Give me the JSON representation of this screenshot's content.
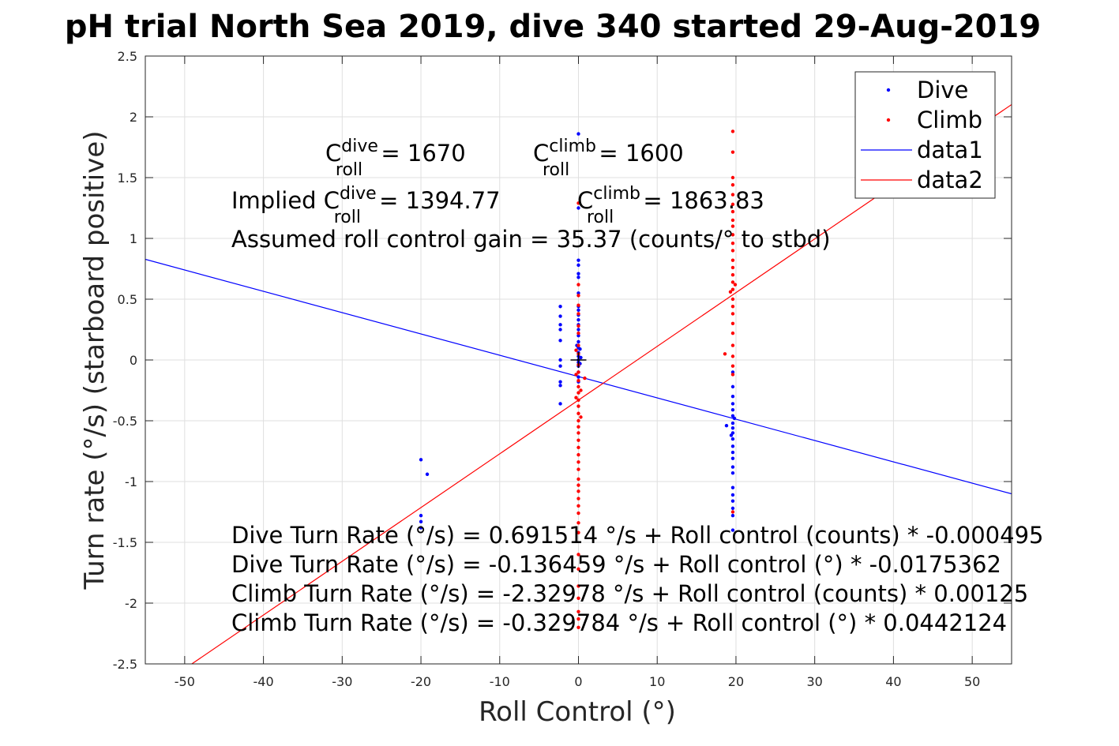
{
  "chart_data": {
    "type": "scatter",
    "title": "pH trial North Sea 2019, dive 340 started 29-Aug-2019",
    "xlabel": "Roll Control (°)",
    "ylabel": "Turn rate (°/s) (starboard positive)",
    "xlim": [
      -55,
      55
    ],
    "ylim": [
      -2.5,
      2.5
    ],
    "xticks": [
      -50,
      -40,
      -30,
      -20,
      -10,
      0,
      10,
      20,
      30,
      40,
      50
    ],
    "yticks": [
      -2.5,
      -2,
      -1.5,
      -1,
      -0.5,
      0,
      0.5,
      1,
      1.5,
      2,
      2.5
    ],
    "xtick_labels": [
      "-50",
      "-40",
      "-30",
      "-20",
      "-10",
      "0",
      "10",
      "20",
      "30",
      "40",
      "50"
    ],
    "ytick_labels": [
      "-2.5",
      "-2",
      "-1.5",
      "-1",
      "-0.5",
      "0",
      "0.5",
      "1",
      "1.5",
      "2",
      "2.5"
    ],
    "grid": true,
    "legend_position": "top-right",
    "series": [
      {
        "name": "Dive",
        "kind": "points",
        "color": "#0000ff",
        "points": [
          [
            -20,
            -0.82
          ],
          [
            -19.2,
            -0.94
          ],
          [
            -20,
            -1.28
          ],
          [
            -20,
            -1.33
          ],
          [
            -20,
            -1.38
          ],
          [
            -2.3,
            0.44
          ],
          [
            -2.3,
            0.36
          ],
          [
            -2.3,
            0.29
          ],
          [
            -2.3,
            0.25
          ],
          [
            -2.3,
            0.16
          ],
          [
            -2.3,
            0.0
          ],
          [
            -2.3,
            -0.05
          ],
          [
            -2.3,
            -0.18
          ],
          [
            -2.3,
            -0.21
          ],
          [
            -2.3,
            -0.36
          ],
          [
            0,
            1.86
          ],
          [
            0,
            1.25
          ],
          [
            0,
            0.82
          ],
          [
            0,
            0.78
          ],
          [
            0,
            0.71
          ],
          [
            0,
            0.68
          ],
          [
            0,
            0.55
          ],
          [
            0,
            0.44
          ],
          [
            0,
            0.41
          ],
          [
            0,
            0.37
          ],
          [
            0,
            0.33
          ],
          [
            0,
            0.29
          ],
          [
            0,
            0.25
          ],
          [
            0,
            0.2
          ],
          [
            0,
            0.15
          ],
          [
            0,
            0.1
          ],
          [
            0,
            0.06
          ],
          [
            0,
            0.03
          ],
          [
            0,
            0.0
          ],
          [
            0,
            -0.02
          ],
          [
            0,
            -0.05
          ],
          [
            0,
            -0.1
          ],
          [
            0,
            -0.14
          ],
          [
            0,
            -0.18
          ],
          [
            0.2,
            0.09
          ],
          [
            0.2,
            -0.03
          ],
          [
            -0.2,
            0.12
          ],
          [
            0.3,
            0.02
          ],
          [
            19.6,
            -0.1
          ],
          [
            19.6,
            -0.22
          ],
          [
            19.6,
            -0.3
          ],
          [
            19.6,
            -0.36
          ],
          [
            19.6,
            -0.41
          ],
          [
            19.6,
            -0.46
          ],
          [
            19.6,
            -0.52
          ],
          [
            19.6,
            -0.56
          ],
          [
            19.6,
            -0.6
          ],
          [
            19.6,
            -0.65
          ],
          [
            19.6,
            -0.71
          ],
          [
            19.6,
            -0.76
          ],
          [
            19.6,
            -0.81
          ],
          [
            19.6,
            -0.88
          ],
          [
            19.6,
            -0.93
          ],
          [
            19.6,
            -1.05
          ],
          [
            19.6,
            -1.11
          ],
          [
            19.6,
            -1.16
          ],
          [
            19.6,
            -1.22
          ],
          [
            19.6,
            -1.28
          ],
          [
            19.6,
            -1.4
          ],
          [
            18.8,
            -0.54
          ],
          [
            19.4,
            -0.62
          ],
          [
            19.8,
            -0.48
          ]
        ]
      },
      {
        "name": "Climb",
        "kind": "points",
        "color": "#ff0000",
        "points": [
          [
            0,
            1.29
          ],
          [
            0,
            0.62
          ],
          [
            0,
            0.53
          ],
          [
            0,
            0.45
          ],
          [
            0,
            0.38
          ],
          [
            0,
            0.28
          ],
          [
            0,
            0.22
          ],
          [
            0,
            0.12
          ],
          [
            0,
            0.05
          ],
          [
            0,
            -0.04
          ],
          [
            0,
            -0.1
          ],
          [
            0,
            -0.17
          ],
          [
            0,
            -0.22
          ],
          [
            0,
            -0.27
          ],
          [
            0,
            -0.33
          ],
          [
            0,
            -0.38
          ],
          [
            0,
            -0.44
          ],
          [
            0,
            -0.5
          ],
          [
            0,
            -0.55
          ],
          [
            0,
            -0.6
          ],
          [
            0,
            -0.66
          ],
          [
            0,
            -0.72
          ],
          [
            0,
            -0.78
          ],
          [
            0,
            -0.84
          ],
          [
            0,
            -0.9
          ],
          [
            0,
            -0.98
          ],
          [
            0,
            -1.03
          ],
          [
            0,
            -1.08
          ],
          [
            0,
            -1.14
          ],
          [
            0,
            -1.2
          ],
          [
            0,
            -1.26
          ],
          [
            0,
            -1.34
          ],
          [
            0,
            -1.42
          ],
          [
            0,
            -1.6
          ],
          [
            0,
            -1.72
          ],
          [
            0,
            -1.86
          ],
          [
            0,
            -1.96
          ],
          [
            0,
            -2.07
          ],
          [
            0,
            -2.13
          ],
          [
            0,
            -2.2
          ],
          [
            -0.3,
            -0.12
          ],
          [
            -0.3,
            -0.31
          ],
          [
            0.3,
            -0.47
          ],
          [
            0.3,
            -0.25
          ],
          [
            -0.3,
            0.08
          ],
          [
            0.8,
            -0.15
          ],
          [
            19.6,
            1.88
          ],
          [
            19.6,
            1.71
          ],
          [
            19.6,
            1.5
          ],
          [
            19.6,
            1.44
          ],
          [
            19.6,
            1.36
          ],
          [
            19.6,
            1.28
          ],
          [
            19.6,
            1.22
          ],
          [
            19.6,
            1.15
          ],
          [
            19.6,
            1.1
          ],
          [
            19.6,
            1.03
          ],
          [
            19.6,
            0.96
          ],
          [
            19.6,
            0.9
          ],
          [
            19.6,
            0.82
          ],
          [
            19.6,
            0.76
          ],
          [
            19.6,
            0.7
          ],
          [
            19.6,
            0.64
          ],
          [
            19.6,
            0.58
          ],
          [
            19.6,
            0.5
          ],
          [
            19.6,
            0.44
          ],
          [
            19.6,
            0.38
          ],
          [
            19.6,
            0.3
          ],
          [
            19.6,
            0.22
          ],
          [
            19.6,
            0.12
          ],
          [
            19.6,
            0.03
          ],
          [
            19.6,
            -0.05
          ],
          [
            19.6,
            -0.12
          ],
          [
            18.6,
            0.05
          ],
          [
            19.3,
            0.56
          ],
          [
            19.9,
            0.62
          ],
          [
            19.6,
            -1.25
          ]
        ]
      },
      {
        "name": "data1",
        "kind": "line",
        "color": "#0000ff",
        "points": [
          [
            -55,
            0.828
          ],
          [
            55,
            -1.101
          ]
        ]
      },
      {
        "name": "data2",
        "kind": "line",
        "color": "#ff0000",
        "points": [
          [
            -55,
            -2.761
          ],
          [
            55,
            2.101
          ]
        ]
      }
    ],
    "annotations": {
      "c_roll_dive": {
        "base": "C",
        "sup": "dive",
        "sub": "roll",
        "rest": " = 1670"
      },
      "c_roll_climb": {
        "base": "C",
        "sup": "climb",
        "sub": "roll",
        "rest": " = 1600"
      },
      "implied_prefix": "Implied C",
      "implied_dive": {
        "sup": "dive",
        "sub": "roll",
        "rest": " = 1394.77"
      },
      "implied_climb": {
        "base": "C",
        "sup": "climb",
        "sub": "roll",
        "rest": " = 1863.83"
      },
      "gain_line": "Assumed roll control gain = 35.37 (counts/° to stbd)",
      "fit_lines": [
        "Dive Turn Rate (°/s) = 0.691514 °/s + Roll control (counts) * -0.000495",
        "Dive Turn Rate (°/s) = -0.136459 °/s + Roll control (°) * -0.0175362",
        "Climb Turn Rate (°/s) = -2.32978 °/s + Roll control (counts) * 0.00125",
        "Climb Turn Rate (°/s) = -0.329784 °/s + Roll control (°) * 0.0442124"
      ]
    }
  }
}
